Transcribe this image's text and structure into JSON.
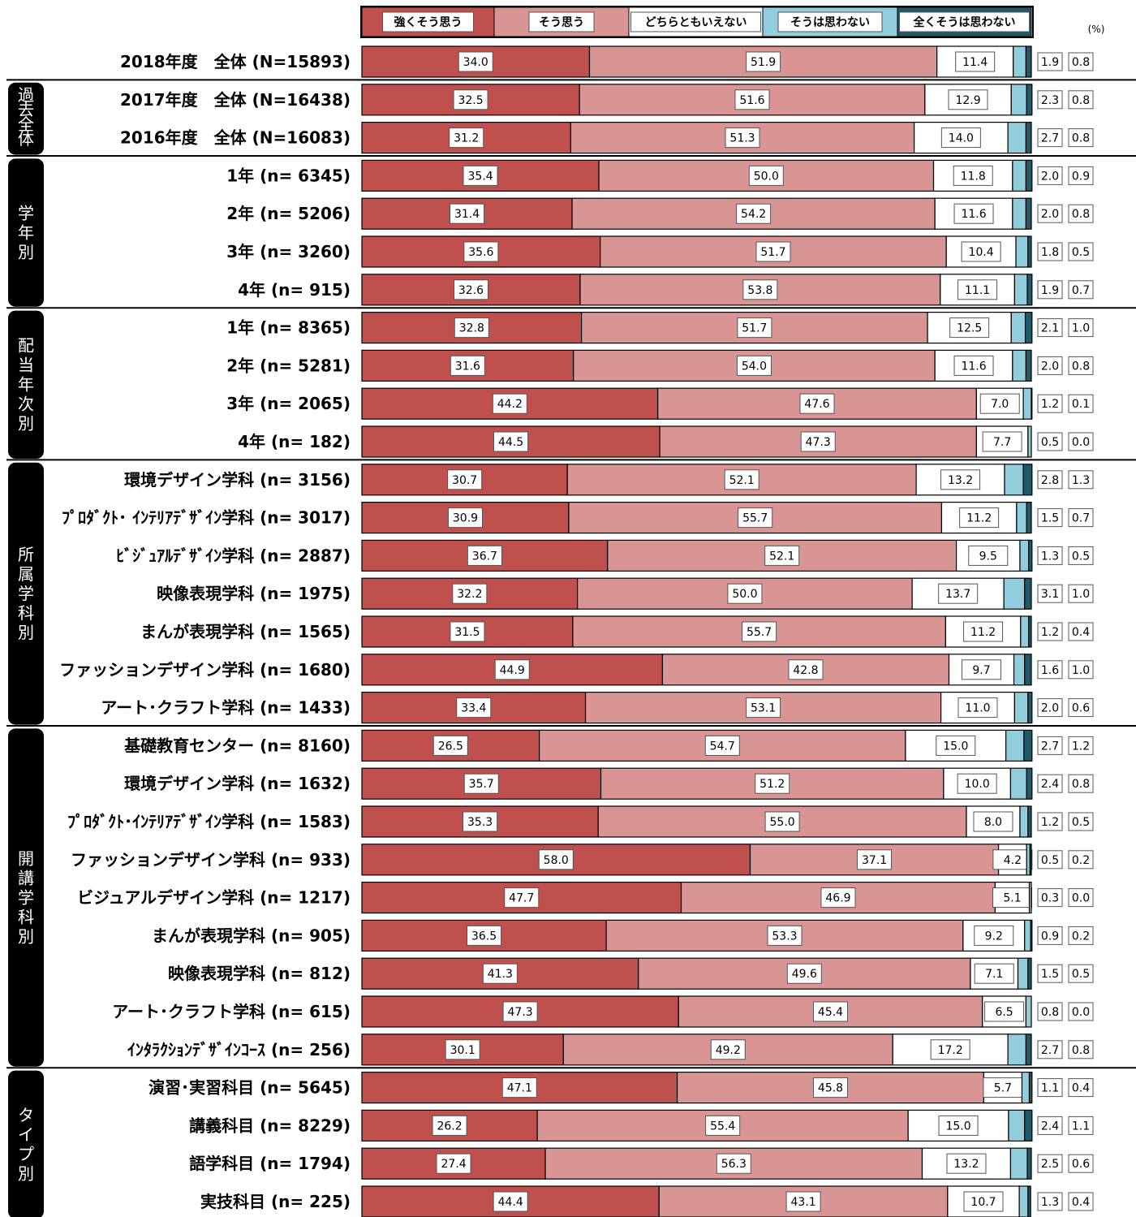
{
  "chart_data": {
    "type": "bar",
    "orientation": "horizontal",
    "stacked": true,
    "unit": "(%)",
    "xlim": [
      0,
      100
    ],
    "legend": {
      "placement": "top",
      "entries": [
        {
          "label": "強くそう思う",
          "color": "#c0504d"
        },
        {
          "label": "そう思う",
          "color": "#d99594"
        },
        {
          "label": "どちらともいえない",
          "color": "#ffffff"
        },
        {
          "label": "そうは思わない",
          "color": "#92cddc"
        },
        {
          "label": "全くそうは思わない",
          "color": "#215968"
        }
      ]
    },
    "groups": [
      {
        "label": "",
        "rows": [
          0
        ]
      },
      {
        "label": "過去全体",
        "rows": [
          1,
          2
        ]
      },
      {
        "label": "学年別",
        "rows": [
          3,
          4,
          5,
          6
        ]
      },
      {
        "label": "配当年次別",
        "rows": [
          7,
          8,
          9,
          10
        ]
      },
      {
        "label": "所属学科別",
        "rows": [
          11,
          12,
          13,
          14,
          15,
          16,
          17
        ]
      },
      {
        "label": "開講学科別",
        "rows": [
          18,
          19,
          20,
          21,
          22,
          23,
          24,
          25,
          26
        ]
      },
      {
        "label": "タイプ別",
        "rows": [
          27,
          28,
          29,
          30
        ]
      }
    ],
    "rows": [
      {
        "label": "2018年度　全体 (N=15893)",
        "values": [
          34.0,
          51.9,
          11.4,
          1.9,
          0.8
        ]
      },
      {
        "label": "2017年度　全体 (N=16438)",
        "values": [
          32.5,
          51.6,
          12.9,
          2.3,
          0.8
        ]
      },
      {
        "label": "2016年度　全体 (N=16083)",
        "values": [
          31.2,
          51.3,
          14.0,
          2.7,
          0.8
        ]
      },
      {
        "label": "1年 (n= 6345)",
        "values": [
          35.4,
          50.0,
          11.8,
          2.0,
          0.9
        ]
      },
      {
        "label": "2年 (n= 5206)",
        "values": [
          31.4,
          54.2,
          11.6,
          2.0,
          0.8
        ]
      },
      {
        "label": "3年 (n= 3260)",
        "values": [
          35.6,
          51.7,
          10.4,
          1.8,
          0.5
        ]
      },
      {
        "label": "4年 (n=  915)",
        "values": [
          32.6,
          53.8,
          11.1,
          1.9,
          0.7
        ]
      },
      {
        "label": "1年 (n= 8365)",
        "values": [
          32.8,
          51.7,
          12.5,
          2.1,
          1.0
        ]
      },
      {
        "label": "2年 (n= 5281)",
        "values": [
          31.6,
          54.0,
          11.6,
          2.0,
          0.8
        ]
      },
      {
        "label": "3年 (n= 2065)",
        "values": [
          44.2,
          47.6,
          7.0,
          1.2,
          0.1
        ]
      },
      {
        "label": "4年 (n=  182)",
        "values": [
          44.5,
          47.3,
          7.7,
          0.5,
          0.0
        ]
      },
      {
        "label": "環境デザイン学科 (n= 3156)",
        "values": [
          30.7,
          52.1,
          13.2,
          2.8,
          1.3
        ]
      },
      {
        "label": "ﾌﾟﾛﾀﾞｸﾄ･ ｲﾝﾃﾘｱﾃﾞｻﾞｲﾝ学科 (n= 3017)",
        "values": [
          30.9,
          55.7,
          11.2,
          1.5,
          0.7
        ]
      },
      {
        "label": "ﾋﾞｼﾞｭｱﾙﾃﾞｻﾞｲﾝ学科 (n= 2887)",
        "values": [
          36.7,
          52.1,
          9.5,
          1.3,
          0.5
        ]
      },
      {
        "label": "映像表現学科 (n= 1975)",
        "values": [
          32.2,
          50.0,
          13.7,
          3.1,
          1.0
        ]
      },
      {
        "label": "まんが表現学科 (n= 1565)",
        "values": [
          31.5,
          55.7,
          11.2,
          1.2,
          0.4
        ]
      },
      {
        "label": "ファッションデザイン学科 (n= 1680)",
        "values": [
          44.9,
          42.8,
          9.7,
          1.6,
          1.0
        ]
      },
      {
        "label": "アート･クラフト学科 (n= 1433)",
        "values": [
          33.4,
          53.1,
          11.0,
          2.0,
          0.6
        ]
      },
      {
        "label": "基礎教育センター (n= 8160)",
        "values": [
          26.5,
          54.7,
          15.0,
          2.7,
          1.2
        ]
      },
      {
        "label": "環境デザイン学科 (n= 1632)",
        "values": [
          35.7,
          51.2,
          10.0,
          2.4,
          0.8
        ]
      },
      {
        "label": "ﾌﾟﾛﾀﾞｸﾄ･ｲﾝﾃﾘｱﾃﾞｻﾞｲﾝ学科 (n= 1583)",
        "values": [
          35.3,
          55.0,
          8.0,
          1.2,
          0.5
        ]
      },
      {
        "label": "ファッションデザイン学科 (n=  933)",
        "values": [
          58.0,
          37.1,
          4.2,
          0.5,
          0.2
        ]
      },
      {
        "label": "ビジュアルデザイン学科 (n= 1217)",
        "values": [
          47.7,
          46.9,
          5.1,
          0.3,
          0.0
        ]
      },
      {
        "label": "まんが表現学科 (n=  905)",
        "values": [
          36.5,
          53.3,
          9.2,
          0.9,
          0.2
        ]
      },
      {
        "label": "映像表現学科 (n=  812)",
        "values": [
          41.3,
          49.6,
          7.1,
          1.5,
          0.5
        ]
      },
      {
        "label": "アート･クラフト学科 (n=  615)",
        "values": [
          47.3,
          45.4,
          6.5,
          0.8,
          0.0
        ]
      },
      {
        "label": "ｲﾝﾀﾗｸｼｮﾝﾃﾞｻﾞｲﾝｺｰｽ (n=  256)",
        "values": [
          30.1,
          49.2,
          17.2,
          2.7,
          0.8
        ]
      },
      {
        "label": "演習･実習科目 (n= 5645)",
        "values": [
          47.1,
          45.8,
          5.7,
          1.1,
          0.4
        ]
      },
      {
        "label": "講義科目 (n= 8229)",
        "values": [
          26.2,
          55.4,
          15.0,
          2.4,
          1.1
        ]
      },
      {
        "label": "語学科目 (n= 1794)",
        "values": [
          27.4,
          56.3,
          13.2,
          2.5,
          0.6
        ]
      },
      {
        "label": "実技科目 (n=  225)",
        "values": [
          44.4,
          43.1,
          10.7,
          1.3,
          0.4
        ]
      }
    ]
  }
}
